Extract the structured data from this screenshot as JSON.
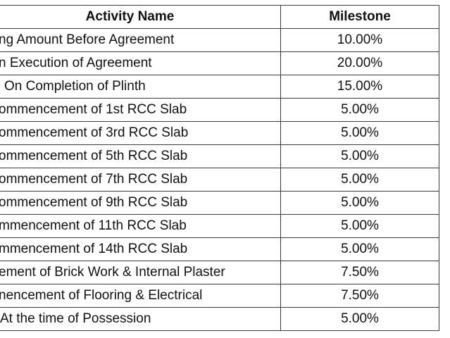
{
  "table": {
    "headers": {
      "activity": "Activity Name",
      "milestone": "Milestone"
    },
    "rows": [
      {
        "activity": "ng Amount Before Agreement",
        "milestone": "10.00%"
      },
      {
        "activity": "n Execution of Agreement",
        "milestone": "20.00%"
      },
      {
        "activity": "On Completion of Plinth",
        "milestone": "15.00%"
      },
      {
        "activity": "ommencement of 1st RCC Slab",
        "milestone": "5.00%"
      },
      {
        "activity": "ommencement of 3rd RCC Slab",
        "milestone": "5.00%"
      },
      {
        "activity": "ommencement of 5th RCC Slab",
        "milestone": "5.00%"
      },
      {
        "activity": "ommencement of 7th RCC Slab",
        "milestone": "5.00%"
      },
      {
        "activity": "ommencement of 9th RCC Slab",
        "milestone": "5.00%"
      },
      {
        "activity": "mmencement of 11th RCC Slab",
        "milestone": "5.00%"
      },
      {
        "activity": "mmencement of 14th RCC Slab",
        "milestone": "5.00%"
      },
      {
        "activity": "ement of Brick Work & Internal Plaster",
        "milestone": "7.50%"
      },
      {
        "activity": "nencement of Flooring & Electrical",
        "milestone": "7.50%"
      },
      {
        "activity": "At the time of Possession",
        "milestone": "5.00%"
      }
    ]
  }
}
